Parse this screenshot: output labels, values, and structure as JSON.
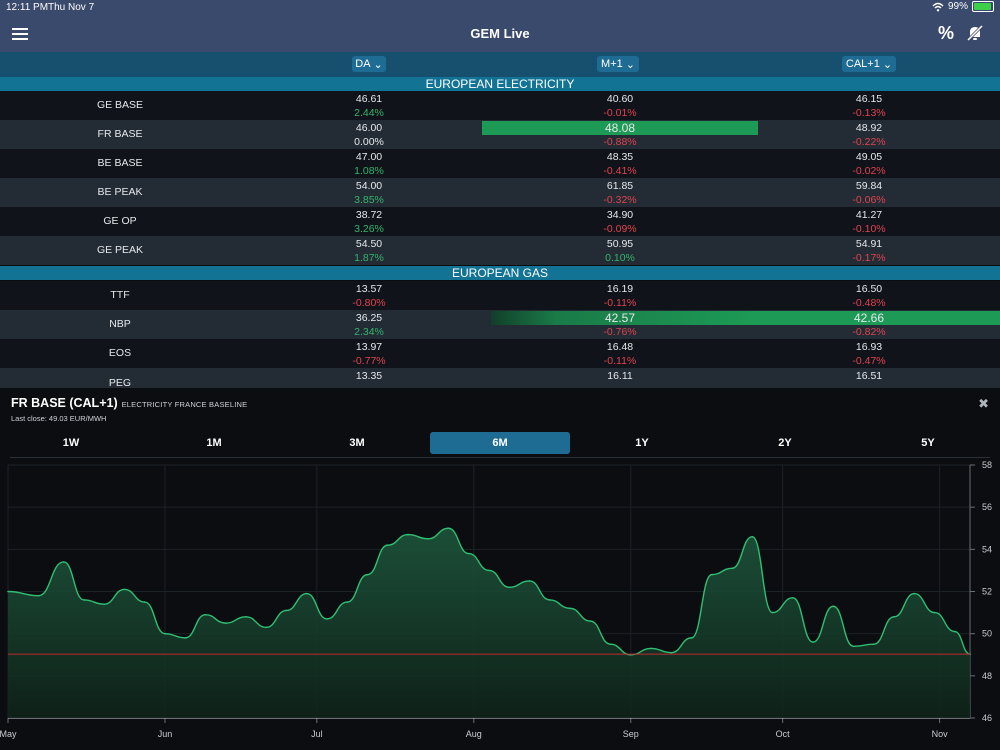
{
  "status": {
    "time": "12:11 PM",
    "date": "Thu Nov 7",
    "battery": "99%",
    "battery_level": 0.99
  },
  "app": {
    "title": "GEM Live",
    "percent_label": "%"
  },
  "columns": [
    "DA",
    "M+1",
    "CAL+1"
  ],
  "sections": [
    {
      "title": "EUROPEAN ELECTRICITY",
      "rows": [
        {
          "name": "GE BASE",
          "cells": [
            {
              "price": "46.61",
              "change": "2.44%",
              "dir": "pos"
            },
            {
              "price": "40.60",
              "change": "-0.01%",
              "dir": "neg"
            },
            {
              "price": "46.15",
              "change": "-0.13%",
              "dir": "neg"
            }
          ]
        },
        {
          "name": "FR BASE",
          "cells": [
            {
              "price": "46.00",
              "change": "0.00%",
              "dir": "neu"
            },
            {
              "price": "48.08",
              "change": "-0.88%",
              "dir": "neg",
              "highlight": true
            },
            {
              "price": "48.92",
              "change": "-0.22%",
              "dir": "neg"
            }
          ]
        },
        {
          "name": "BE BASE",
          "cells": [
            {
              "price": "47.00",
              "change": "1.08%",
              "dir": "pos"
            },
            {
              "price": "48.35",
              "change": "-0.41%",
              "dir": "neg"
            },
            {
              "price": "49.05",
              "change": "-0.02%",
              "dir": "neg"
            }
          ]
        },
        {
          "name": "BE PEAK",
          "cells": [
            {
              "price": "54.00",
              "change": "3.85%",
              "dir": "pos"
            },
            {
              "price": "61.85",
              "change": "-0.32%",
              "dir": "neg"
            },
            {
              "price": "59.84",
              "change": "-0.06%",
              "dir": "neg"
            }
          ]
        },
        {
          "name": "GE OP",
          "cells": [
            {
              "price": "38.72",
              "change": "3.26%",
              "dir": "pos"
            },
            {
              "price": "34.90",
              "change": "-0.09%",
              "dir": "neg"
            },
            {
              "price": "41.27",
              "change": "-0.10%",
              "dir": "neg"
            }
          ]
        },
        {
          "name": "GE PEAK",
          "cells": [
            {
              "price": "54.50",
              "change": "1.87%",
              "dir": "pos"
            },
            {
              "price": "50.95",
              "change": "0.10%",
              "dir": "pos"
            },
            {
              "price": "54.91",
              "change": "-0.17%",
              "dir": "neg"
            }
          ]
        }
      ]
    },
    {
      "title": "EUROPEAN GAS",
      "rows": [
        {
          "name": "TTF",
          "cells": [
            {
              "price": "13.57",
              "change": "-0.80%",
              "dir": "neg"
            },
            {
              "price": "16.19",
              "change": "-0.11%",
              "dir": "neg"
            },
            {
              "price": "16.50",
              "change": "-0.48%",
              "dir": "neg"
            }
          ]
        },
        {
          "name": "NBP",
          "cells": [
            {
              "price": "36.25",
              "change": "2.34%",
              "dir": "pos"
            },
            {
              "price": "42.57",
              "change": "-0.76%",
              "dir": "neg",
              "highlight": true
            },
            {
              "price": "42.66",
              "change": "-0.82%",
              "dir": "neg",
              "highlight": true
            }
          ]
        },
        {
          "name": "EOS",
          "cells": [
            {
              "price": "13.97",
              "change": "-0.77%",
              "dir": "neg"
            },
            {
              "price": "16.48",
              "change": "-0.11%",
              "dir": "neg"
            },
            {
              "price": "16.93",
              "change": "-0.47%",
              "dir": "neg"
            }
          ]
        },
        {
          "name": "PEG",
          "cells": [
            {
              "price": "13.35",
              "change": "",
              "dir": "neu"
            },
            {
              "price": "16.11",
              "change": "",
              "dir": "neu"
            },
            {
              "price": "16.51",
              "change": "",
              "dir": "neu"
            }
          ]
        }
      ]
    }
  ],
  "colors": {
    "positive": "#34b36b",
    "negative": "#e0424f",
    "highlight": "#1d9a55",
    "accent": "#1e6c94",
    "line": "#2fbf72",
    "close_line": "#c0282f"
  },
  "panel": {
    "title": "FR BASE (CAL+1)",
    "subtitle": "ELECTRICITY FRANCE BASELINE",
    "last_close": "Last close: 49.03 EUR/MWH",
    "ranges": [
      "1W",
      "1M",
      "3M",
      "6M",
      "1Y",
      "2Y",
      "5Y"
    ],
    "active_range": "6M"
  },
  "chart_data": {
    "type": "area",
    "title": "FR BASE (CAL+1)",
    "xlabel": "",
    "ylabel": "",
    "x_ticks": [
      "May",
      "Jun",
      "Jul",
      "Aug",
      "Sep",
      "Oct",
      "Nov"
    ],
    "y_ticks": [
      46,
      48,
      50,
      52,
      54,
      56,
      58
    ],
    "ylim": [
      46,
      58
    ],
    "reference_line": 49.03,
    "grid": true,
    "x": [
      "2019-05-01",
      "2019-05-07",
      "2019-05-12",
      "2019-05-16",
      "2019-05-20",
      "2019-05-24",
      "2019-05-28",
      "2019-06-01",
      "2019-06-05",
      "2019-06-09",
      "2019-06-13",
      "2019-06-17",
      "2019-06-21",
      "2019-06-25",
      "2019-06-29",
      "2019-07-03",
      "2019-07-07",
      "2019-07-11",
      "2019-07-15",
      "2019-07-19",
      "2019-07-23",
      "2019-07-27",
      "2019-07-31",
      "2019-08-04",
      "2019-08-08",
      "2019-08-12",
      "2019-08-16",
      "2019-08-20",
      "2019-08-24",
      "2019-08-28",
      "2019-09-01",
      "2019-09-05",
      "2019-09-09",
      "2019-09-13",
      "2019-09-17",
      "2019-09-21",
      "2019-09-25",
      "2019-09-29",
      "2019-10-03",
      "2019-10-07",
      "2019-10-11",
      "2019-10-15",
      "2019-10-19",
      "2019-10-23",
      "2019-10-27",
      "2019-10-31",
      "2019-11-04",
      "2019-11-07"
    ],
    "values": [
      52.0,
      51.8,
      53.4,
      51.6,
      51.4,
      52.1,
      51.5,
      50.0,
      49.8,
      50.9,
      50.5,
      50.8,
      50.3,
      51.1,
      51.9,
      50.7,
      51.5,
      52.8,
      54.2,
      54.7,
      54.5,
      55.0,
      53.8,
      53.0,
      52.2,
      52.5,
      51.6,
      51.2,
      50.6,
      49.5,
      49.0,
      49.3,
      49.1,
      49.8,
      52.8,
      53.1,
      54.6,
      51.0,
      51.7,
      49.6,
      51.3,
      49.4,
      49.5,
      50.8,
      51.9,
      51.0,
      50.1,
      49.03
    ]
  }
}
